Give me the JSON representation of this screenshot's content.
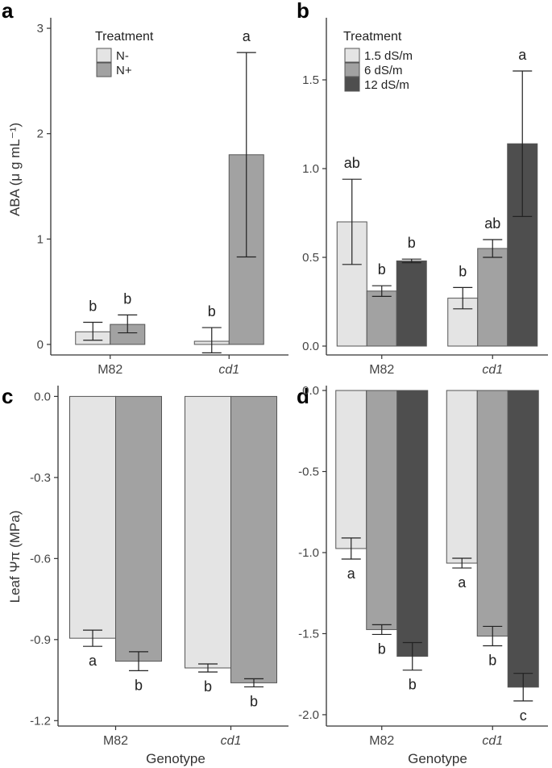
{
  "figure": {
    "y_label_top": "ABA (μ g mL⁻¹)",
    "y_label_bottom": "Leaf Ψπ (MPa)",
    "x_label": "Genotype"
  },
  "colors": {
    "light": "#e4e4e4",
    "mid": "#a2a2a2",
    "dark": "#4e4e4e",
    "axis": "#333333"
  },
  "chart_data": [
    {
      "panel": "a",
      "type": "bar",
      "categories": [
        "M82",
        "cd1"
      ],
      "legend_title": "Treatment",
      "legend_position": "top-left",
      "series": [
        {
          "name": "N-",
          "color": "light",
          "values": [
            0.12,
            0.03
          ],
          "error_low": [
            0.04,
            -0.08
          ],
          "error_high": [
            0.21,
            0.16
          ],
          "letters": [
            "b",
            "b"
          ]
        },
        {
          "name": "N+",
          "color": "mid",
          "values": [
            0.19,
            1.8
          ],
          "error_low": [
            0.11,
            0.83
          ],
          "error_high": [
            0.28,
            2.77
          ],
          "letters": [
            "b",
            "a"
          ]
        }
      ],
      "ylim": [
        -0.1,
        3.1
      ],
      "yticks": [
        "0",
        "1",
        "2",
        "3"
      ]
    },
    {
      "panel": "b",
      "type": "bar",
      "categories": [
        "M82",
        "cd1"
      ],
      "legend_title": "Treatment",
      "legend_position": "top-left",
      "series": [
        {
          "name": "1.5 dS/m",
          "color": "light",
          "values": [
            0.7,
            0.27
          ],
          "error_low": [
            0.46,
            0.21
          ],
          "error_high": [
            0.94,
            0.33
          ],
          "letters": [
            "ab",
            "b"
          ]
        },
        {
          "name": "6 dS/m",
          "color": "mid",
          "values": [
            0.31,
            0.55
          ],
          "error_low": [
            0.28,
            0.5
          ],
          "error_high": [
            0.34,
            0.6
          ],
          "letters": [
            "b",
            "ab"
          ]
        },
        {
          "name": "12 dS/m",
          "color": "dark",
          "values": [
            0.48,
            1.14
          ],
          "error_low": [
            0.47,
            0.73
          ],
          "error_high": [
            0.49,
            1.55
          ],
          "letters": [
            "b",
            "a"
          ]
        }
      ],
      "ylim": [
        -0.05,
        1.85
      ],
      "yticks": [
        "0.0",
        "0.5",
        "1.0",
        "1.5"
      ]
    },
    {
      "panel": "c",
      "type": "bar",
      "categories": [
        "M82",
        "cd1"
      ],
      "series": [
        {
          "name": "N-",
          "color": "light",
          "values": [
            -0.895,
            -1.005
          ],
          "error_low": [
            -0.925,
            -1.02
          ],
          "error_high": [
            -0.865,
            -0.99
          ],
          "letters": [
            "a",
            "b"
          ]
        },
        {
          "name": "N+",
          "color": "mid",
          "values": [
            -0.98,
            -1.06
          ],
          "error_low": [
            -1.015,
            -1.075
          ],
          "error_high": [
            -0.945,
            -1.045
          ],
          "letters": [
            "b",
            "b"
          ]
        }
      ],
      "ylim": [
        -1.22,
        0.04
      ],
      "yticks": [
        "0.0",
        "-0.3",
        "-0.6",
        "-0.9",
        "-1.2"
      ]
    },
    {
      "panel": "d",
      "type": "bar",
      "categories": [
        "M82",
        "cd1"
      ],
      "series": [
        {
          "name": "1.5 dS/m",
          "color": "light",
          "values": [
            -0.975,
            -1.065
          ],
          "error_low": [
            -1.04,
            -1.095
          ],
          "error_high": [
            -0.91,
            -1.035
          ],
          "letters": [
            "a",
            "a"
          ]
        },
        {
          "name": "6 dS/m",
          "color": "mid",
          "values": [
            -1.475,
            -1.515
          ],
          "error_low": [
            -1.505,
            -1.575
          ],
          "error_high": [
            -1.445,
            -1.455
          ],
          "letters": [
            "b",
            "b"
          ]
        },
        {
          "name": "12 dS/m",
          "color": "dark",
          "values": [
            -1.64,
            -1.83
          ],
          "error_low": [
            -1.725,
            -1.915
          ],
          "error_high": [
            -1.555,
            -1.745
          ],
          "letters": [
            "b",
            "c"
          ]
        }
      ],
      "ylim": [
        -2.07,
        0.03
      ],
      "yticks": [
        "0.0",
        "-0.5",
        "-1.0",
        "-1.5",
        "-2.0"
      ]
    }
  ]
}
